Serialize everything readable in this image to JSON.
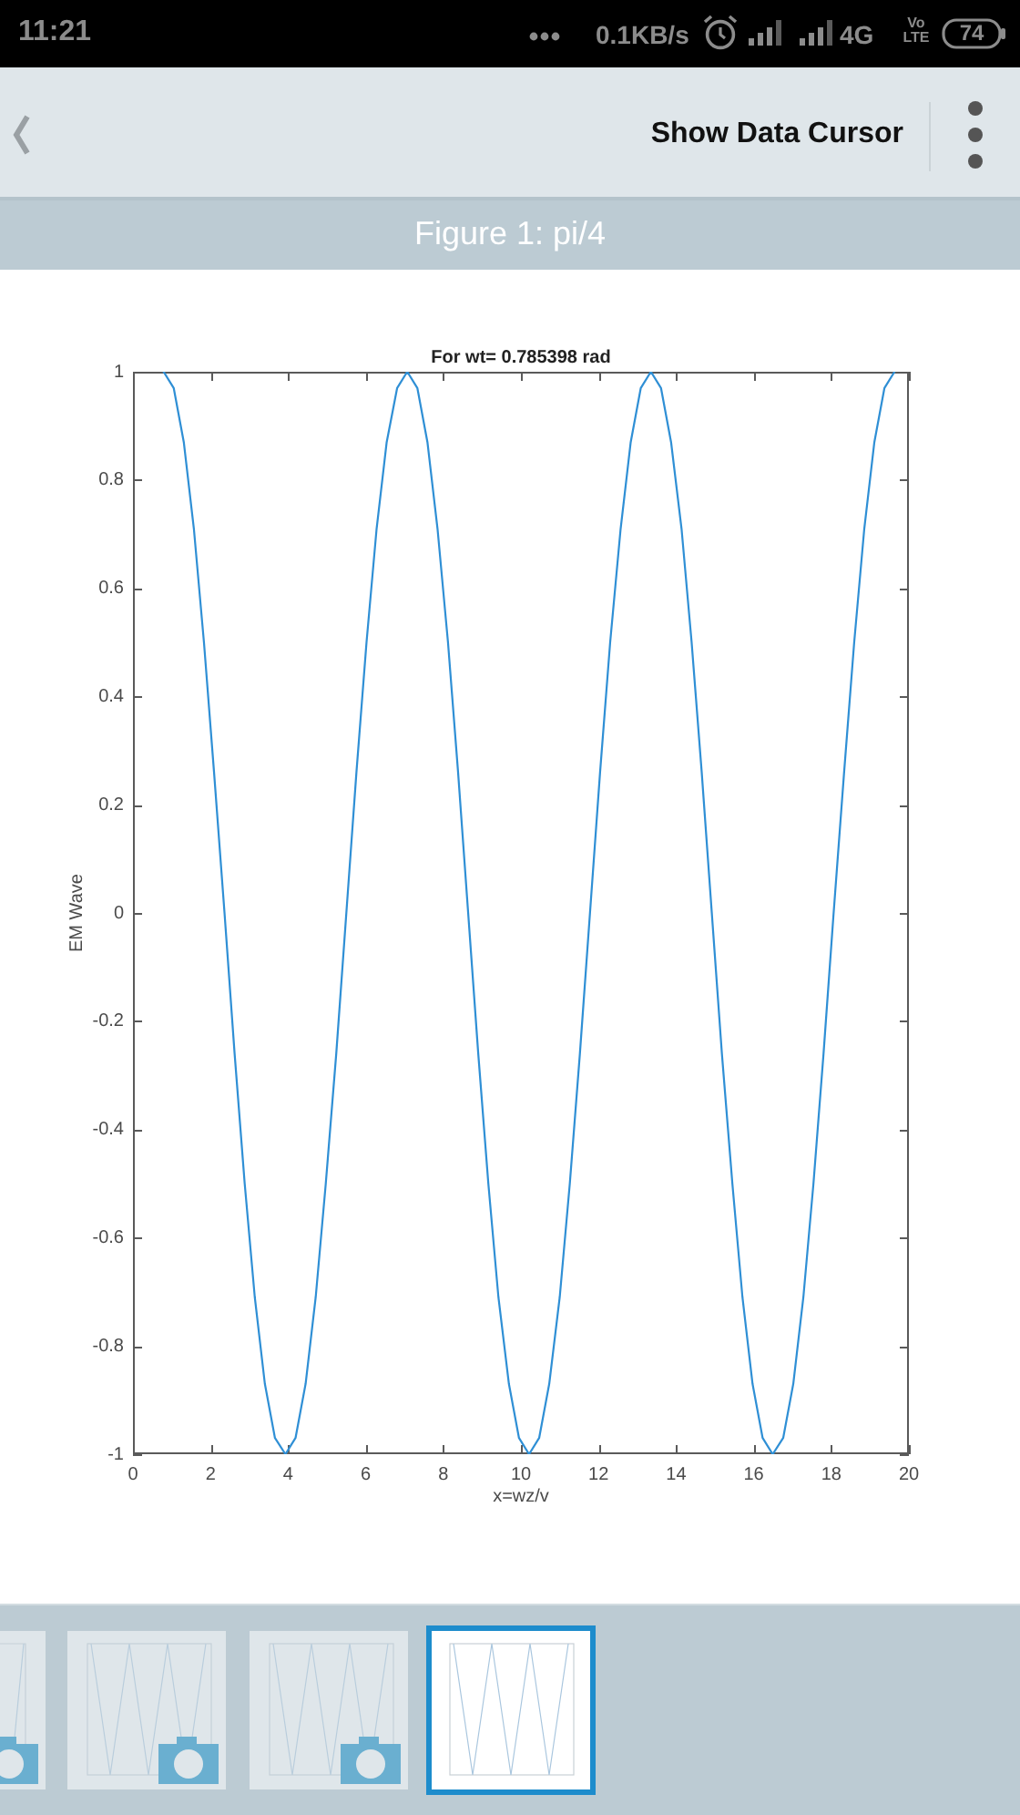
{
  "chart_data": {
    "type": "line",
    "title": "For wt= 0.785398 rad",
    "xlabel": "x=wz/v",
    "ylabel": "EM Wave",
    "annotations": [
      "11:21",
      "0.1KB/s",
      "4G",
      "Vo LTE",
      "74",
      "Show Data Cursor",
      "Figure 1: pi/4"
    ],
    "x": [
      0.79,
      1.05,
      1.31,
      1.57,
      1.83,
      2.09,
      2.36,
      2.62,
      2.88,
      3.14,
      3.4,
      3.66,
      3.93,
      4.19,
      4.45,
      4.71,
      4.97,
      5.24,
      5.5,
      5.76,
      6.02,
      6.28,
      6.54,
      6.81,
      7.07,
      7.33,
      7.59,
      7.85,
      8.12,
      8.38,
      8.64,
      8.9,
      9.16,
      9.42,
      9.69,
      9.95,
      10.21,
      10.47,
      10.73,
      11.0,
      11.26,
      11.52,
      11.78,
      12.04,
      12.3,
      12.57,
      12.83,
      13.09,
      13.35,
      13.61,
      13.87,
      14.14,
      14.4,
      14.66,
      14.92,
      15.18,
      15.45,
      15.71,
      15.97,
      16.23,
      16.49,
      16.76,
      17.02,
      17.28,
      17.54,
      17.8,
      18.06,
      18.33,
      18.59,
      18.85,
      19.11,
      19.37,
      19.63
    ],
    "series": [
      {
        "color": "#2f8fd5",
        "values": [
          1,
          0.97,
          0.87,
          0.71,
          0.5,
          0.26,
          0,
          -0.26,
          -0.5,
          -0.71,
          -0.87,
          -0.97,
          -1,
          -0.97,
          -0.87,
          -0.71,
          -0.5,
          -0.26,
          0,
          0.26,
          0.5,
          0.71,
          0.87,
          0.97,
          1,
          0.97,
          0.87,
          0.71,
          0.5,
          0.26,
          0,
          -0.26,
          -0.5,
          -0.71,
          -0.87,
          -0.97,
          -1,
          -0.97,
          -0.87,
          -0.71,
          -0.5,
          -0.26,
          0,
          0.26,
          0.5,
          0.71,
          0.87,
          0.97,
          1,
          0.97,
          0.87,
          0.71,
          0.5,
          0.26,
          0,
          -0.26,
          -0.5,
          -0.71,
          -0.87,
          -0.97,
          -1,
          -0.97,
          -0.87,
          -0.71,
          -0.5,
          -0.26,
          0,
          0.26,
          0.5,
          0.71,
          0.87,
          0.97,
          1
        ]
      }
    ],
    "xlim": [
      0,
      20
    ],
    "xticks": [
      0,
      2,
      4,
      6,
      8,
      10,
      12,
      14,
      16,
      18,
      20
    ],
    "ylim": [
      -1,
      1
    ],
    "yticks": [
      -1,
      -0.8,
      -0.6,
      -0.4,
      -0.2,
      0,
      0.2,
      0.4,
      0.6,
      0.8,
      1
    ],
    "line_style": "solid"
  }
}
